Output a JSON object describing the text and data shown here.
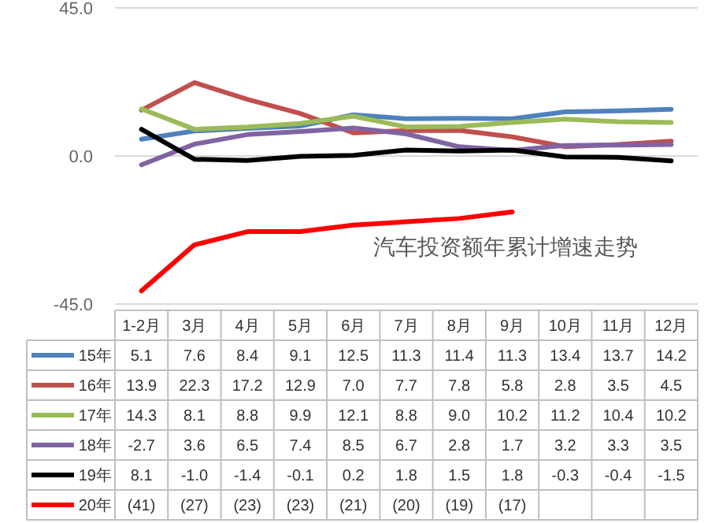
{
  "chart_data": {
    "type": "line",
    "title": "汽车投资额年累计增速走势",
    "categories": [
      "1-2月",
      "3月",
      "4月",
      "5月",
      "6月",
      "7月",
      "8月",
      "9月",
      "10月",
      "11月",
      "12月"
    ],
    "ylim": [
      -45,
      45
    ],
    "yticks": [
      {
        "value": -45,
        "label": "-45.0"
      },
      {
        "value": 0,
        "label": "0.0"
      },
      {
        "value": 45,
        "label": "45.0"
      }
    ],
    "grid": "y",
    "legend": "bottom",
    "marker": "none",
    "line_style": "solid",
    "series": [
      {
        "name": "15年",
        "color": "#4f81bd",
        "values": [
          5.1,
          7.6,
          8.4,
          9.1,
          12.5,
          11.3,
          11.4,
          11.3,
          13.4,
          13.7,
          14.2
        ],
        "value_labels": [
          "5.1",
          "7.6",
          "8.4",
          "9.1",
          "12.5",
          "11.3",
          "11.4",
          "11.3",
          "13.4",
          "13.7",
          "14.2"
        ]
      },
      {
        "name": "16年",
        "color": "#c0504d",
        "values": [
          13.9,
          22.3,
          17.2,
          12.9,
          7.0,
          7.7,
          7.8,
          5.8,
          2.8,
          3.5,
          4.5
        ],
        "value_labels": [
          "13.9",
          "22.3",
          "17.2",
          "12.9",
          "7.0",
          "7.7",
          "7.8",
          "5.8",
          "2.8",
          "3.5",
          "4.5"
        ]
      },
      {
        "name": "17年",
        "color": "#9bbb59",
        "values": [
          14.3,
          8.1,
          8.8,
          9.9,
          12.1,
          8.8,
          9.0,
          10.2,
          11.2,
          10.4,
          10.2
        ],
        "value_labels": [
          "14.3",
          "8.1",
          "8.8",
          "9.9",
          "12.1",
          "8.8",
          "9.0",
          "10.2",
          "11.2",
          "10.4",
          "10.2"
        ]
      },
      {
        "name": "18年",
        "color": "#8064a2",
        "values": [
          -2.7,
          3.6,
          6.5,
          7.4,
          8.5,
          6.7,
          2.8,
          1.7,
          3.2,
          3.3,
          3.5
        ],
        "value_labels": [
          "-2.7",
          "3.6",
          "6.5",
          "7.4",
          "8.5",
          "6.7",
          "2.8",
          "1.7",
          "3.2",
          "3.3",
          "3.5"
        ]
      },
      {
        "name": "19年",
        "color": "#000000",
        "values": [
          8.1,
          -1.0,
          -1.4,
          -0.1,
          0.2,
          1.8,
          1.5,
          1.8,
          -0.3,
          -0.4,
          -1.5
        ],
        "value_labels": [
          "8.1",
          "-1.0",
          "-1.4",
          "-0.1",
          "0.2",
          "1.8",
          "1.5",
          "1.8",
          "-0.3",
          "-0.4",
          "-1.5"
        ]
      },
      {
        "name": "20年",
        "color": "#ff0000",
        "values": [
          -41,
          -27,
          -23,
          -23,
          -21,
          -20,
          -19,
          -17,
          null,
          null,
          null
        ],
        "value_labels": [
          "(41)",
          "(27)",
          "(23)",
          "(23)",
          "(21)",
          "(20)",
          "(19)",
          "(17)",
          null,
          null,
          null
        ]
      }
    ]
  }
}
